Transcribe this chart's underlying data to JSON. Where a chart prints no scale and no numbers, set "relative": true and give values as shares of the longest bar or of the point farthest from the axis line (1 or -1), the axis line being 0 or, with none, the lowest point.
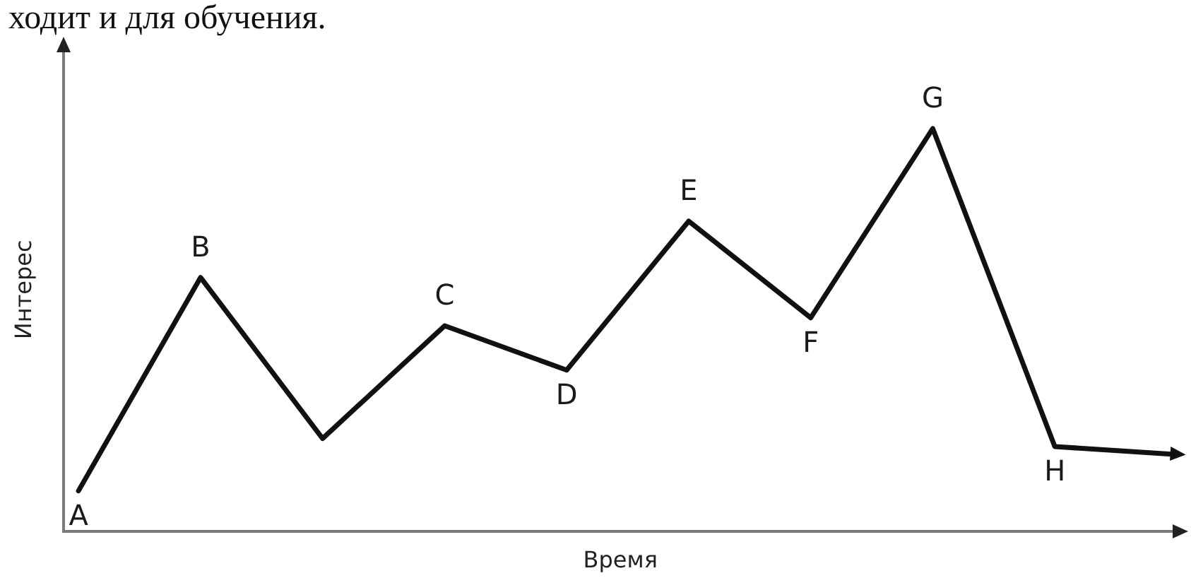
{
  "chart_data": {
    "type": "line",
    "xlabel": "Время",
    "ylabel": "Интерес",
    "relative": true,
    "marker": "none",
    "line_style": "solid",
    "annotations": [
      "ходит и для обучения.",
      {
        "text": "A",
        "y": 0.1
      },
      {
        "text": "B",
        "y": 0.63
      },
      {
        "text": "C",
        "y": 0.51
      },
      {
        "text": "D",
        "y": 0.4
      },
      {
        "text": "E",
        "y": 0.77
      },
      {
        "text": "F",
        "y": 0.53
      },
      {
        "text": "G",
        "y": 1
      },
      {
        "text": "H",
        "y": 0.21
      }
    ],
    "categories": [
      null,
      null,
      null,
      null,
      null,
      null,
      null,
      null,
      null,
      null
    ],
    "series": [
      {
        "color": "#111111",
        "values": [
          0.1,
          0.63,
          0.23,
          0.51,
          0.4,
          0.77,
          0.53,
          1,
          0.21,
          0.19
        ]
      }
    ]
  }
}
